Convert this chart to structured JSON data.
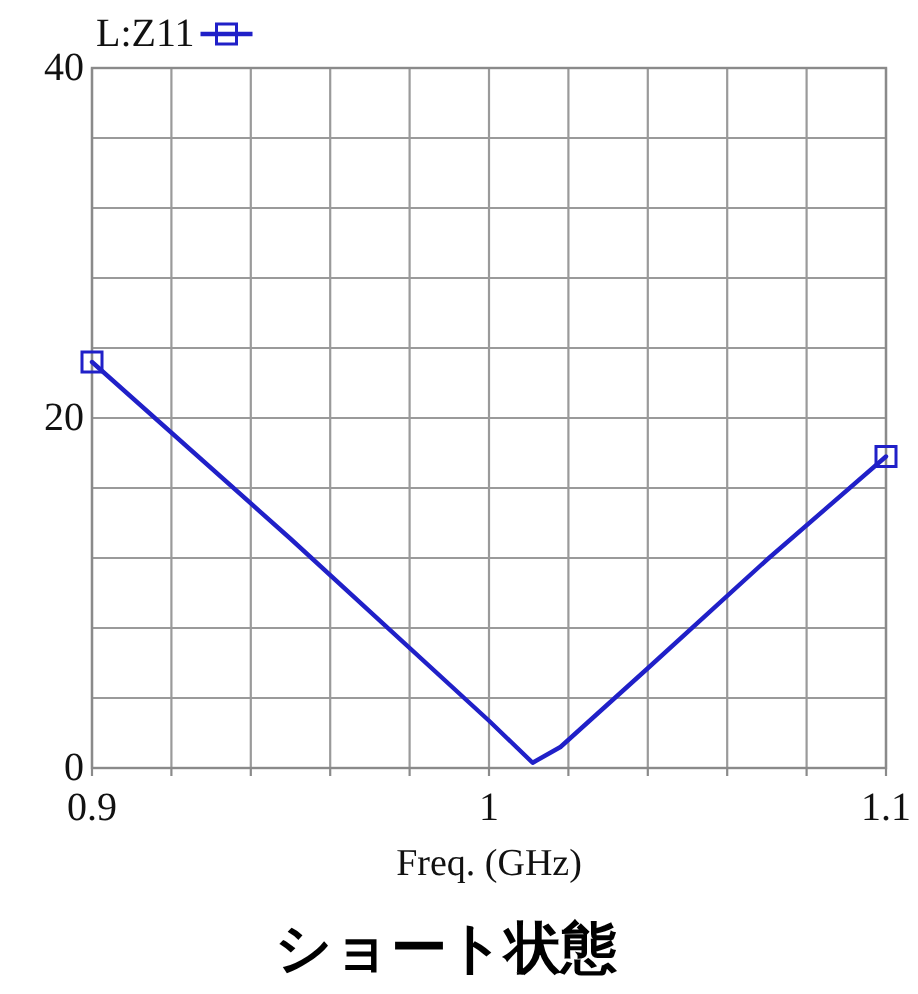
{
  "chart_data": {
    "type": "line",
    "x": [
      0.9,
      0.95,
      1.0,
      1.011,
      1.018,
      1.04,
      1.07,
      1.1
    ],
    "series": [
      {
        "name": "L:Z11",
        "color": "#2020c8",
        "values": [
          23.2,
          13.1,
          2.7,
          0.3,
          1.2,
          5.7,
          11.9,
          17.8
        ],
        "marker": "none"
      },
      {
        "type": "scatter",
        "color": "#2020c8",
        "x": [
          0.9,
          1.1
        ],
        "values": [
          23.2,
          17.8
        ]
      }
    ],
    "xlabel": "Freq. (GHz)",
    "annotations": [
      "ショート状態"
    ],
    "xlim": [
      0.9,
      1.1
    ],
    "ylim": [
      0,
      40
    ],
    "xticks": [
      0.9,
      {
        "value": 0.92,
        "label": null
      },
      {
        "value": 0.94,
        "label": null
      },
      {
        "value": 0.96,
        "label": null
      },
      {
        "value": 0.98,
        "label": null
      },
      1,
      {
        "value": 1.02,
        "label": null
      },
      {
        "value": 1.04,
        "label": null
      },
      {
        "value": 1.06,
        "label": null
      },
      {
        "value": 1.08,
        "label": null
      },
      1.1
    ],
    "yticks": [
      0,
      {
        "value": 4,
        "label": null
      },
      {
        "value": 8,
        "label": null
      },
      {
        "value": 12,
        "label": null
      },
      {
        "value": 16,
        "label": null
      },
      20,
      {
        "value": 24,
        "label": null
      },
      {
        "value": 28,
        "label": null
      },
      {
        "value": 32,
        "label": null
      },
      {
        "value": 36,
        "label": null
      },
      40
    ],
    "grid": true,
    "marker": "square",
    "legend": "top left"
  }
}
